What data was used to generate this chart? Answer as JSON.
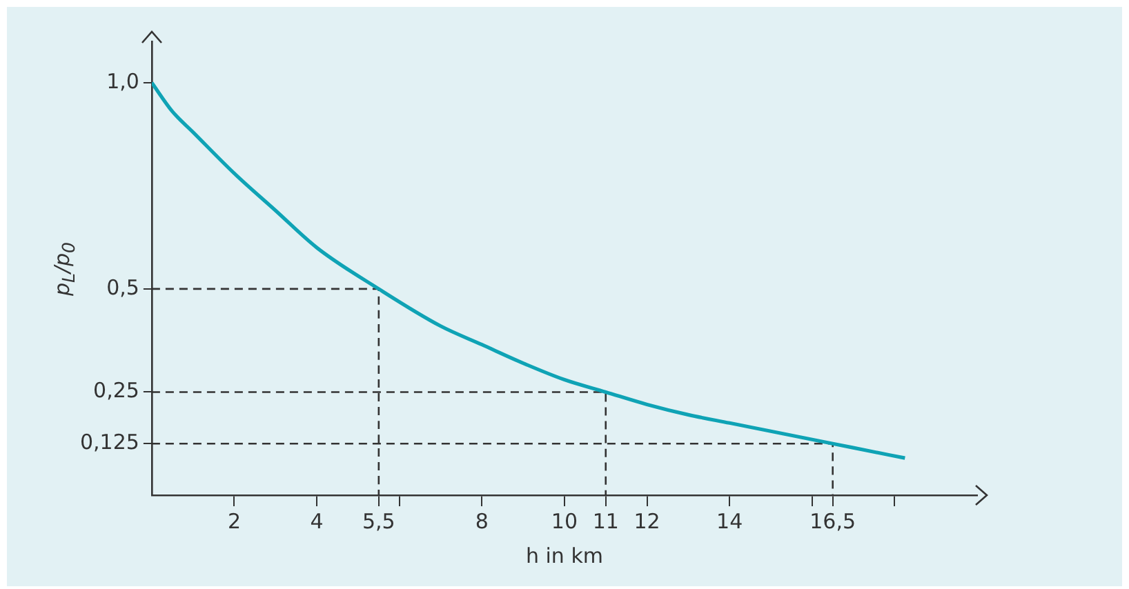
{
  "chart_data": {
    "type": "line",
    "xlabel": "h in km",
    "ylabel": "p$_{L}$/p$_{0}$",
    "xlim": [
      0,
      20
    ],
    "ylim": [
      0,
      1.1
    ],
    "xticks": [
      2,
      4,
      {
        "value": 5.5,
        "label": "5,5"
      },
      {
        "value": 6,
        "label": null
      },
      8,
      10,
      {
        "value": 11,
        "label": "11"
      },
      12,
      14,
      {
        "value": 16,
        "label": null
      },
      {
        "value": 16.5,
        "label": "16,5"
      },
      {
        "value": 18,
        "label": null
      }
    ],
    "yticks": [
      {
        "value": 0.125,
        "label": "0,125"
      },
      {
        "value": 0.25,
        "label": "0,25"
      },
      {
        "value": 0.5,
        "label": "0,5"
      },
      {
        "value": 1,
        "label": "1,0"
      }
    ],
    "grid": false,
    "legend": false,
    "marker": "none",
    "series": [
      {
        "color": "#0fa3b5",
        "line_style": "solid",
        "x": [
          0,
          0.5,
          1,
          2,
          3,
          4,
          5.5,
          7,
          8,
          9,
          10,
          11,
          12,
          13,
          14,
          15,
          16.5,
          17.5,
          18.25
        ],
        "values": [
          1,
          0.93,
          0.88,
          0.78,
          0.69,
          0.6,
          0.5,
          0.41,
          0.365,
          0.32,
          0.28,
          0.25,
          0.22,
          0.195,
          0.175,
          0.155,
          0.125,
          0.105,
          0.09
        ]
      },
      {
        "color": "#333333",
        "line_style": "dashed",
        "x": [
          0,
          5.5,
          5.5
        ],
        "values": [
          0.5,
          0.5,
          0
        ]
      },
      {
        "color": "#333333",
        "line_style": "dashed",
        "x": [
          0,
          11,
          11
        ],
        "values": [
          0.25,
          0.25,
          0
        ]
      },
      {
        "color": "#333333",
        "line_style": "dashed",
        "x": [
          0,
          16.5,
          16.5
        ],
        "values": [
          0.125,
          0.125,
          0
        ]
      }
    ]
  }
}
